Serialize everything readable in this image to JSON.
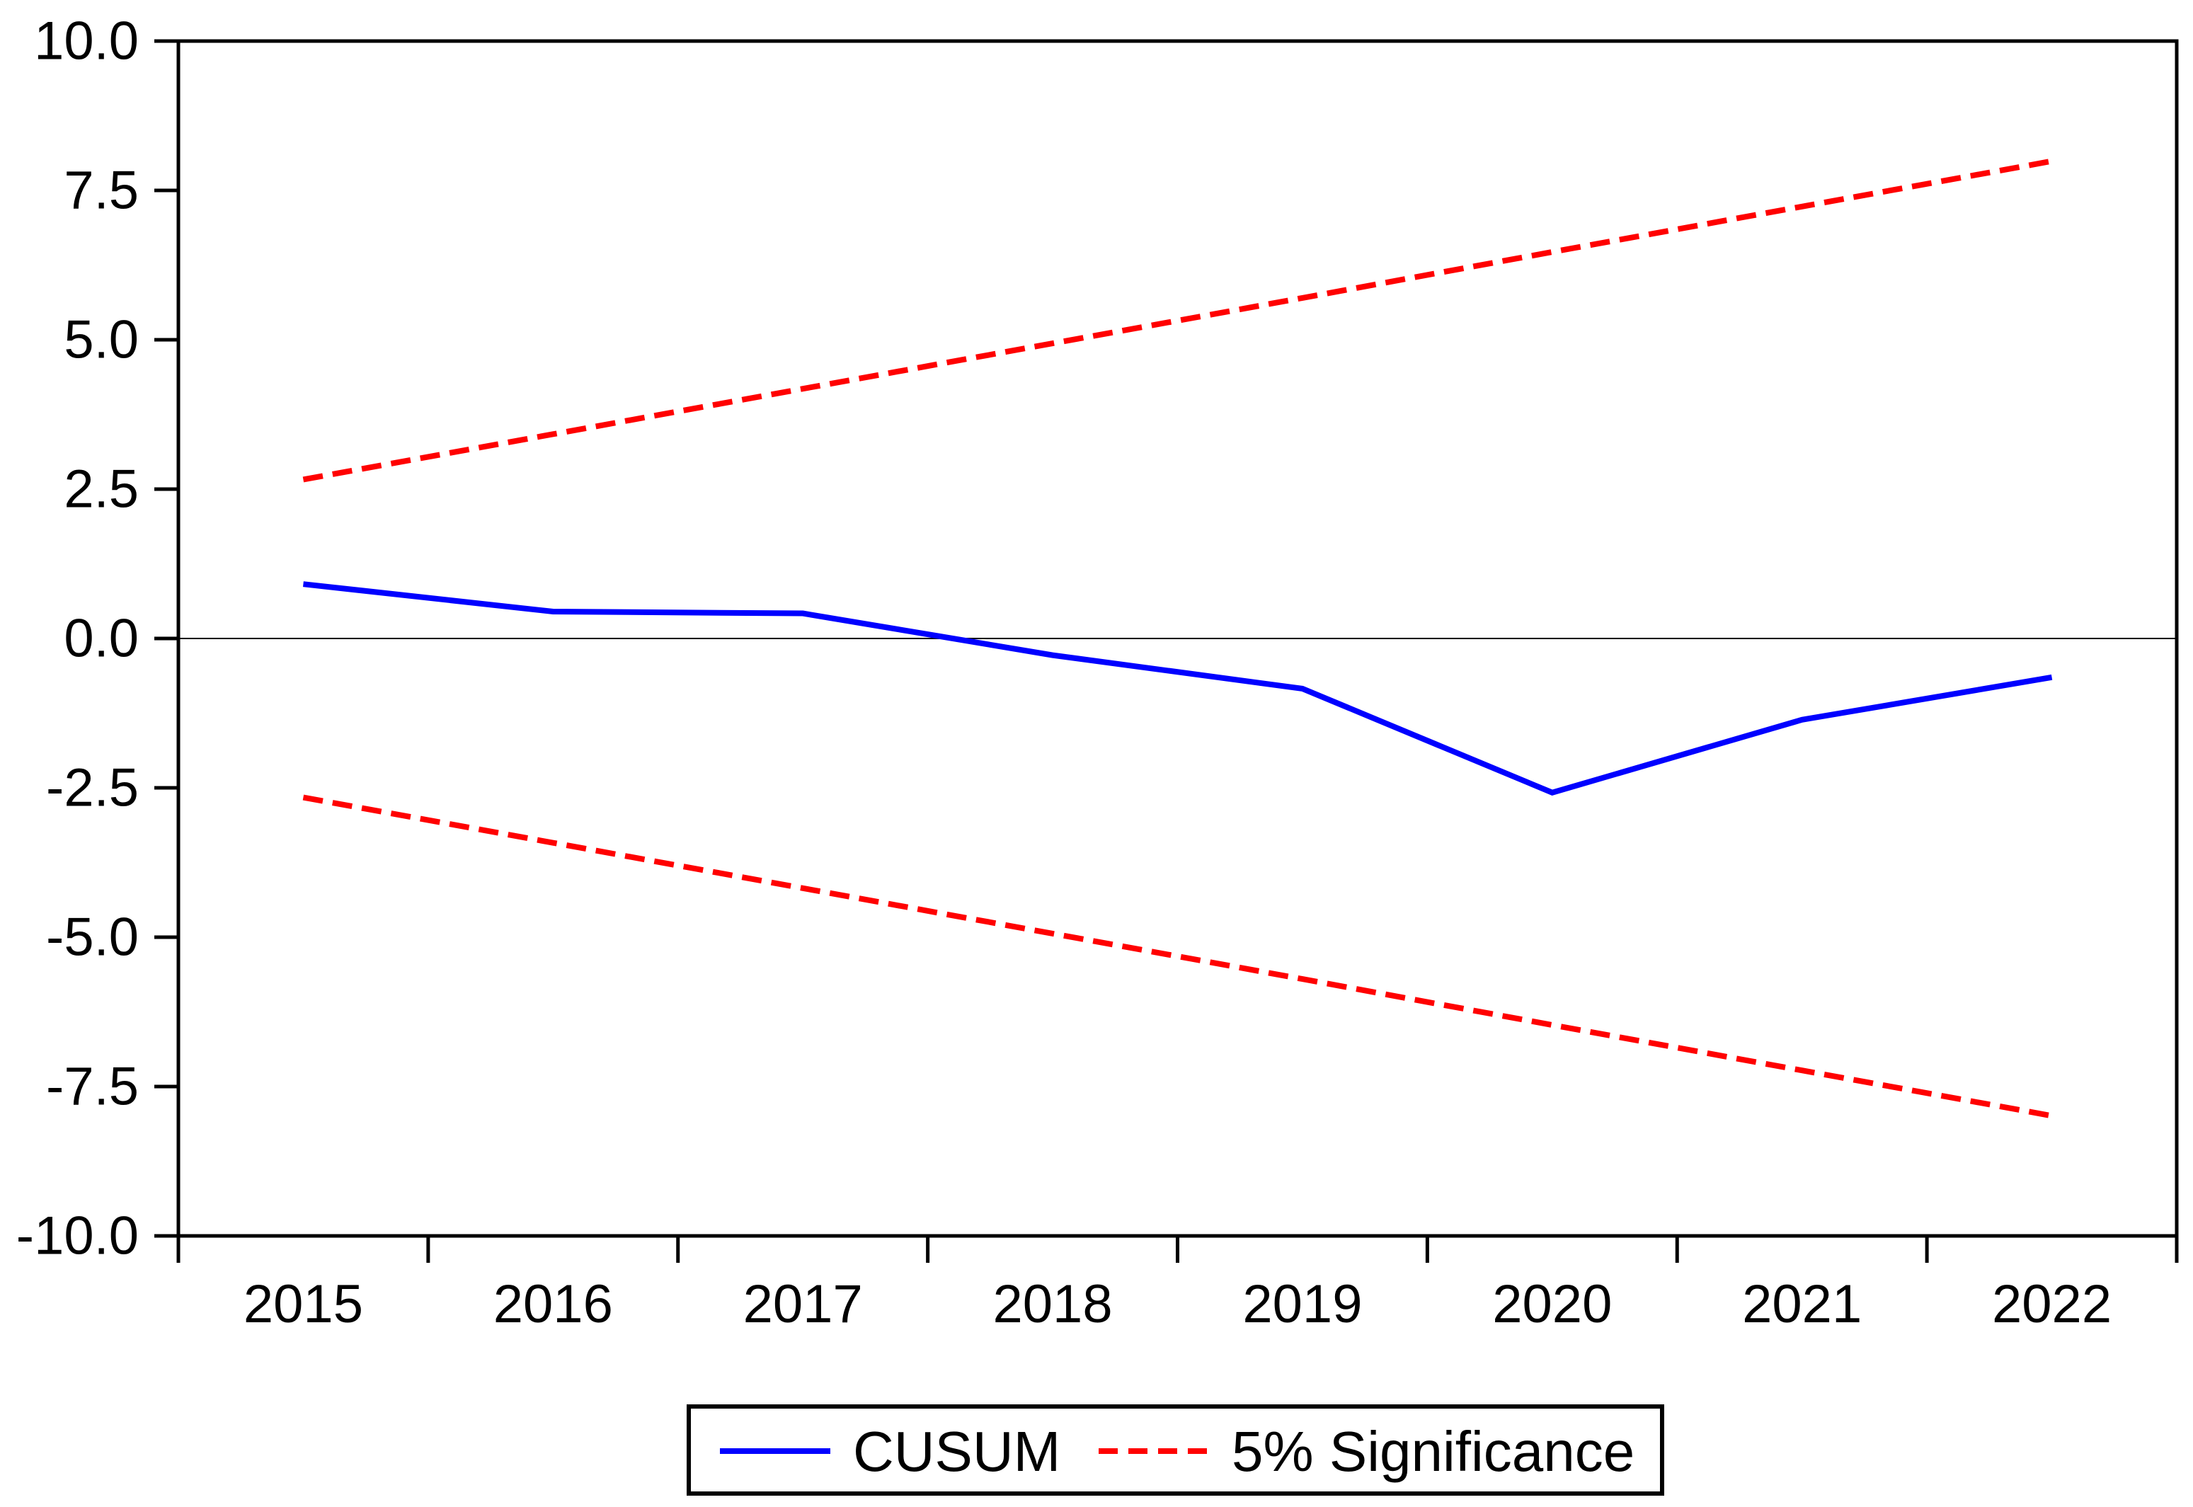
{
  "chart_data": {
    "type": "line",
    "title": "",
    "xlabel": "",
    "ylabel": "",
    "x": [
      2015,
      2016,
      2017,
      2018,
      2019,
      2020,
      2021,
      2022
    ],
    "x_tick_labels": [
      "2015",
      "2016",
      "2017",
      "2018",
      "2019",
      "2020",
      "2021",
      "2022"
    ],
    "ylim": [
      -10,
      10
    ],
    "y_ticks": [
      10.0,
      7.5,
      5.0,
      2.5,
      0.0,
      -2.5,
      -5.0,
      -7.5,
      -10.0
    ],
    "y_tick_labels": [
      "10.0",
      "7.5",
      "5.0",
      "2.5",
      "0.0",
      "-2.5",
      "-5.0",
      "-7.5",
      "-10.0"
    ],
    "grid": false,
    "zero_line": true,
    "legend_position": "bottom-center",
    "series": [
      {
        "name": "CUSUM",
        "color": "#0000ff",
        "style": "solid",
        "values": [
          0.91,
          0.45,
          0.42,
          -0.28,
          -0.84,
          -2.58,
          -1.36,
          -0.65
        ]
      },
      {
        "name": "5% Significance (upper)",
        "color": "#ff0000",
        "style": "dashed",
        "values": [
          2.66,
          3.42,
          4.18,
          4.94,
          5.7,
          6.47,
          7.23,
          7.99
        ]
      },
      {
        "name": "5% Significance (lower)",
        "color": "#ff0000",
        "style": "dashed",
        "values": [
          -2.66,
          -3.42,
          -4.18,
          -4.94,
          -5.7,
          -6.47,
          -7.23,
          -7.99
        ]
      }
    ],
    "legend": [
      {
        "label": "CUSUM",
        "color": "#0000ff",
        "style": "solid"
      },
      {
        "label": "5% Significance",
        "color": "#ff0000",
        "style": "dashed"
      }
    ],
    "colors": {
      "cusum_line": "#0000ff",
      "significance_line": "#ff0000",
      "axis": "#000000",
      "zero_line": "#000000",
      "background": "#ffffff"
    }
  }
}
